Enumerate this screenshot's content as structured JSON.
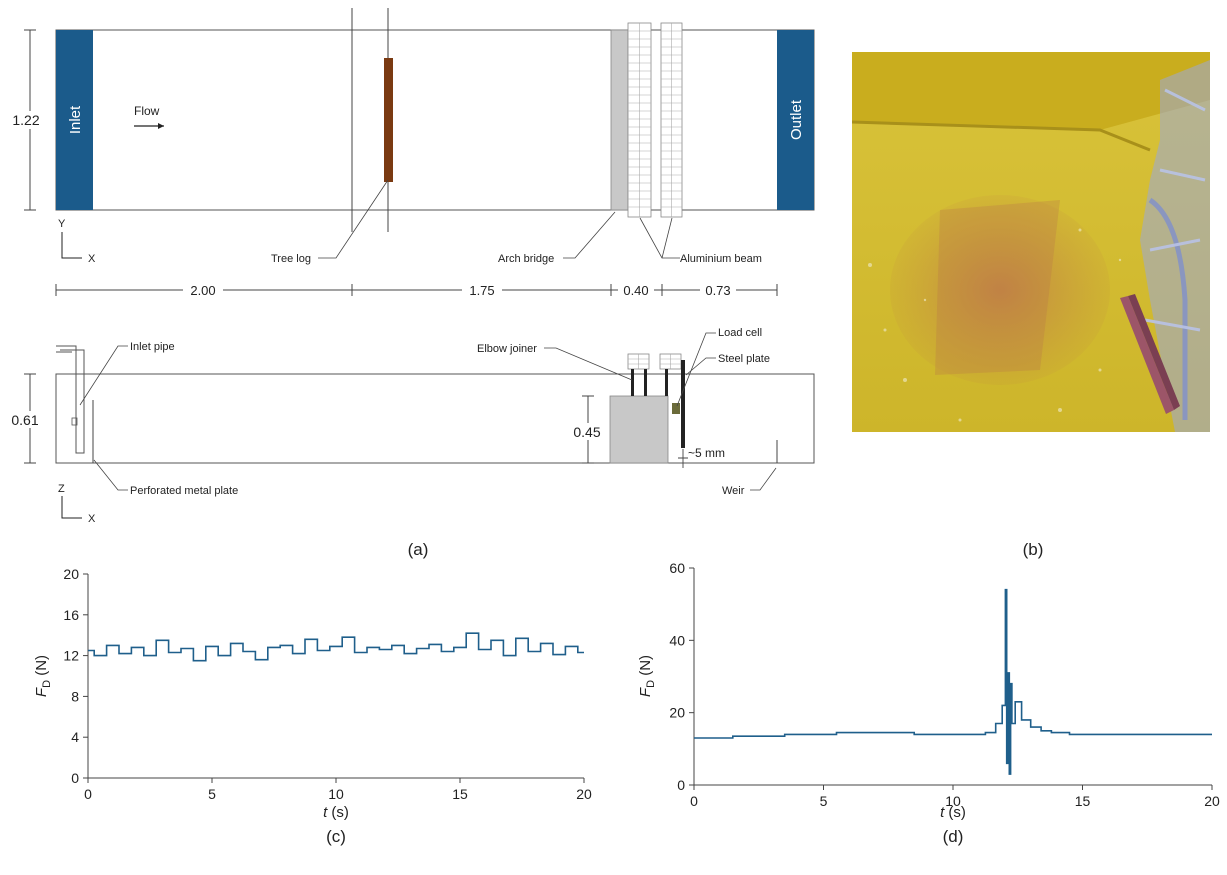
{
  "panel_a": {
    "plan": {
      "inlet": "Inlet",
      "outlet": "Outlet",
      "flow": "Flow",
      "width_dim": "1.22",
      "axis_y": "Y",
      "axis_x": "X",
      "tree_log": "Tree log",
      "arch_bridge": "Arch bridge",
      "aluminium_beam": "Aluminium beam",
      "dim_1": "2.00",
      "dim_2": "1.75",
      "dim_3": "0.40",
      "dim_4": "0.73"
    },
    "side": {
      "inlet_pipe": "Inlet pipe",
      "elbow_joiner": "Elbow joiner",
      "load_cell": "Load cell",
      "steel_plate": "Steel plate",
      "height_dim": "0.61",
      "bridge_height_dim": "0.45",
      "gap": "~5 mm",
      "perforated_plate": "Perforated metal plate",
      "weir": "Weir",
      "axis_z": "Z",
      "axis_x": "X"
    },
    "caption": "(a)"
  },
  "panel_b": {
    "caption": "(b)"
  },
  "colors": {
    "blue": "#1b5b8b",
    "series": "#1f5f8b",
    "log": "#7a3a12",
    "water": "#d8c030",
    "bridge_grey": "#c8c8c8"
  },
  "chart_data": [
    {
      "type": "line",
      "caption": "(c)",
      "title": "",
      "xlabel_var": "t",
      "xlabel_unit": " (s)",
      "ylabel_var": "F",
      "ylabel_sub": "D",
      "ylabel_unit": " (N)",
      "xlim": [
        0,
        20
      ],
      "ylim": [
        0,
        20
      ],
      "xticks": [
        0,
        5,
        10,
        15,
        20
      ],
      "yticks": [
        0,
        4,
        8,
        12,
        16,
        20
      ],
      "grid": false,
      "series": [
        {
          "x": [
            0,
            0.5,
            1,
            1.5,
            2,
            2.5,
            3,
            3.5,
            4,
            4.5,
            5,
            5.5,
            6,
            6.5,
            7,
            7.5,
            8,
            8.5,
            9,
            9.5,
            10,
            10.5,
            11,
            11.5,
            12,
            12.5,
            13,
            13.5,
            14,
            14.5,
            15,
            15.5,
            16,
            16.5,
            17,
            17.5,
            18,
            18.5,
            19,
            19.5,
            20
          ],
          "y": [
            12.5,
            12.0,
            13.0,
            12.2,
            12.8,
            12.0,
            13.5,
            12.3,
            12.7,
            11.5,
            12.9,
            12.0,
            13.2,
            12.4,
            11.6,
            12.8,
            13.0,
            12.2,
            13.6,
            12.5,
            12.9,
            13.8,
            12.3,
            12.8,
            12.6,
            13.0,
            12.2,
            12.7,
            13.1,
            12.4,
            12.8,
            14.2,
            12.6,
            13.5,
            12.0,
            13.7,
            12.4,
            13.2,
            12.1,
            12.9,
            12.3
          ]
        }
      ]
    },
    {
      "type": "line",
      "caption": "(d)",
      "title": "",
      "xlabel_var": "t",
      "xlabel_unit": " (s)",
      "ylabel_var": "F",
      "ylabel_sub": "D",
      "ylabel_unit": " (N)",
      "xlim": [
        0,
        20
      ],
      "ylim": [
        0,
        60
      ],
      "xticks": [
        0,
        5,
        10,
        15,
        20
      ],
      "yticks": [
        0,
        20,
        40,
        60
      ],
      "grid": false,
      "series": [
        {
          "x": [
            0,
            1,
            2,
            3,
            4,
            5,
            6,
            7,
            8,
            9,
            10,
            11,
            11.5,
            11.8,
            12.0,
            12.05,
            12.1,
            12.15,
            12.2,
            12.25,
            12.3,
            12.5,
            12.8,
            13.2,
            13.6,
            14,
            15,
            16,
            17,
            18,
            19,
            20
          ],
          "y": [
            13,
            13,
            13.5,
            13.5,
            14,
            14,
            14.5,
            14.5,
            14.5,
            14,
            14,
            14,
            14.5,
            17,
            22,
            54,
            6,
            31,
            3,
            28,
            17,
            23,
            18,
            16,
            15,
            14.5,
            14,
            14,
            14,
            14,
            14,
            14
          ]
        }
      ]
    }
  ]
}
